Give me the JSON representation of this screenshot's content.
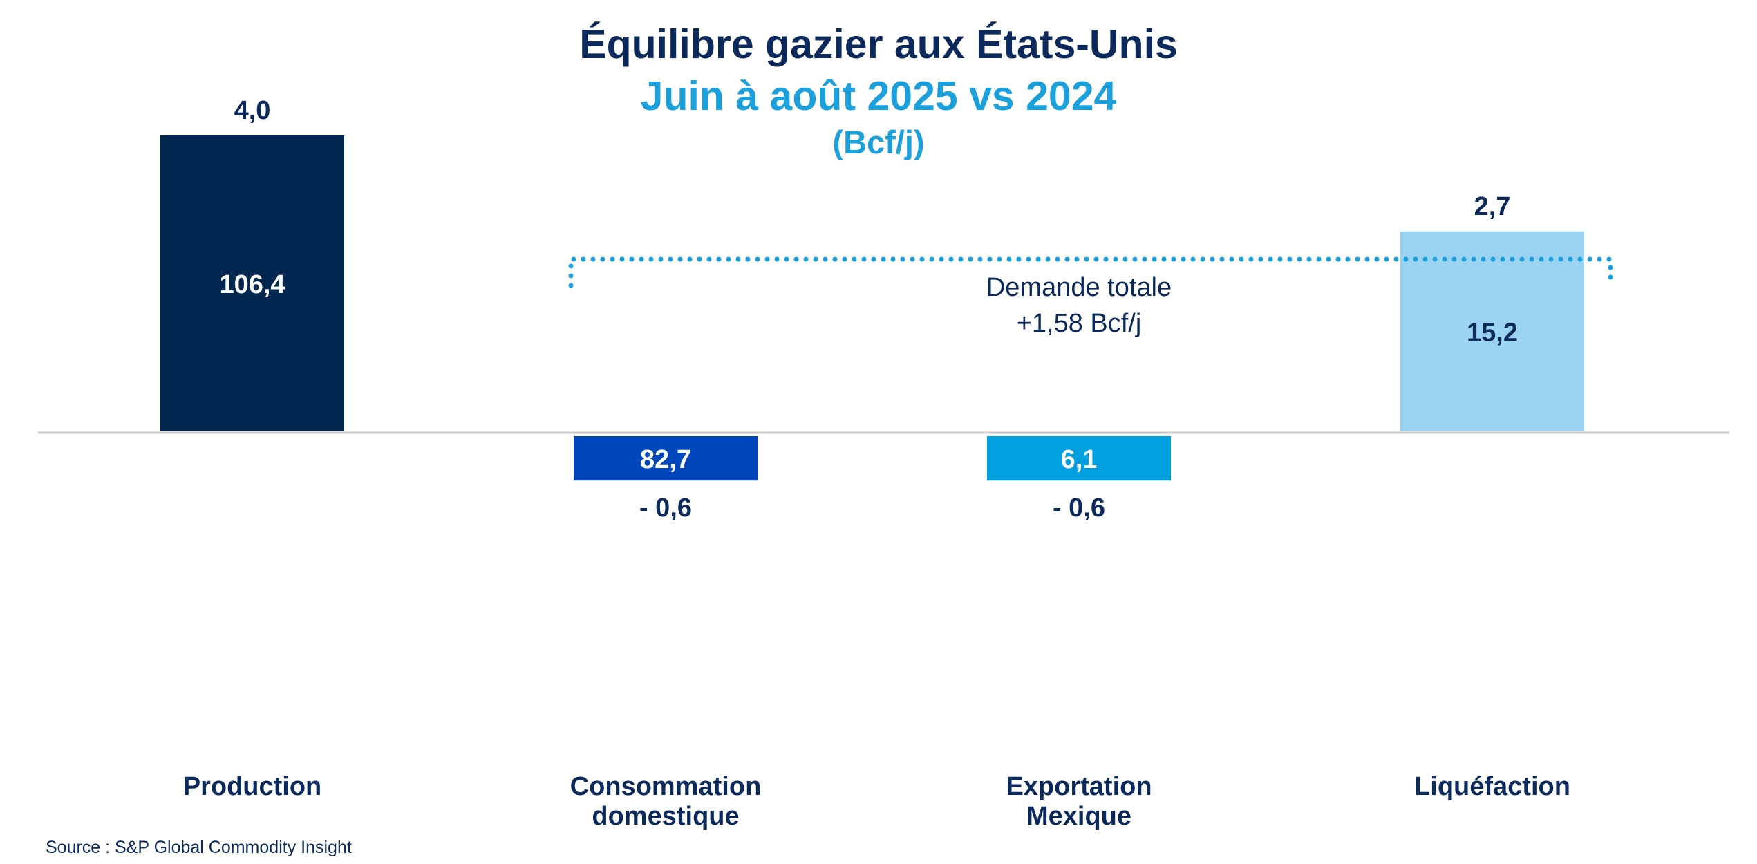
{
  "chart_data": {
    "type": "bar",
    "title": "Équilibre gazier aux États-Unis",
    "subtitle": "Juin à août 2025 vs 2024",
    "unit": "(Bcf/j)",
    "categories": [
      "Production",
      "Consommation domestique",
      "Exportation Mexique",
      "Liquéfaction"
    ],
    "category_lines": [
      [
        "Production"
      ],
      [
        "Consommation",
        "domestique"
      ],
      [
        "Exportation",
        "Mexique"
      ],
      [
        "Liquéfaction"
      ]
    ],
    "values": [
      4.0,
      -0.6,
      -0.6,
      2.7
    ],
    "value_labels": [
      "4,0",
      "- 0,6",
      "- 0,6",
      "2,7"
    ],
    "levels": [
      106.4,
      82.7,
      6.1,
      15.2
    ],
    "level_labels": [
      "106,4",
      "82,7",
      "6,1",
      "15,2"
    ],
    "colors": [
      "#03284f",
      "#0047bb",
      "#009fdf",
      "#9bd3f3"
    ],
    "level_label_colors": [
      "#ffffff",
      "#ffffff",
      "#ffffff",
      "#0b2a5b"
    ],
    "annotation": {
      "line1": "Demande totale",
      "line2": "+1,58 Bcf/j"
    },
    "ylim": [
      -0.6,
      4.0
    ],
    "grid": false,
    "legend": "none"
  },
  "source": "Source : S&P Global Commodity Insight"
}
